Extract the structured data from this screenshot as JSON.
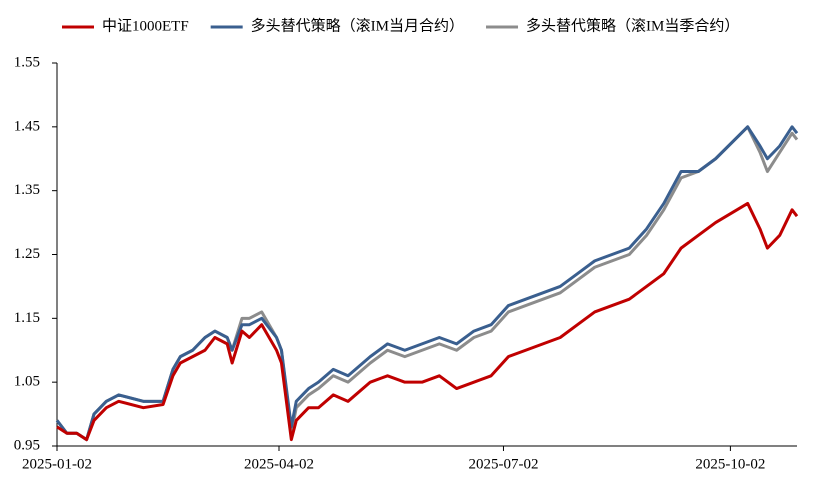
{
  "chart_data": {
    "type": "line",
    "x": [
      "2025-01-02",
      "2025-01-06",
      "2025-01-10",
      "2025-01-14",
      "2025-01-17",
      "2025-01-22",
      "2025-01-27",
      "2025-02-06",
      "2025-02-14",
      "2025-02-18",
      "2025-02-21",
      "2025-02-26",
      "2025-03-03",
      "2025-03-07",
      "2025-03-12",
      "2025-03-14",
      "2025-03-18",
      "2025-03-21",
      "2025-03-26",
      "2025-04-01",
      "2025-04-03",
      "2025-04-07",
      "2025-04-09",
      "2025-04-14",
      "2025-04-18",
      "2025-04-24",
      "2025-04-30",
      "2025-05-09",
      "2025-05-16",
      "2025-05-23",
      "2025-05-30",
      "2025-06-06",
      "2025-06-13",
      "2025-06-20",
      "2025-06-27",
      "2025-07-04",
      "2025-07-11",
      "2025-07-18",
      "2025-07-25",
      "2025-08-01",
      "2025-08-08",
      "2025-08-15",
      "2025-08-22",
      "2025-08-29",
      "2025-09-05",
      "2025-09-12",
      "2025-09-19",
      "2025-09-26",
      "2025-10-09",
      "2025-10-14",
      "2025-10-17",
      "2025-10-22",
      "2025-10-27",
      "2025-10-29"
    ],
    "series": [
      {
        "name": "中证1000ETF",
        "color": "#c00000",
        "values": [
          0.98,
          0.97,
          0.97,
          0.96,
          0.99,
          1.01,
          1.02,
          1.01,
          1.015,
          1.06,
          1.08,
          1.09,
          1.1,
          1.12,
          1.11,
          1.08,
          1.13,
          1.12,
          1.14,
          1.1,
          1.08,
          0.96,
          0.99,
          1.01,
          1.01,
          1.03,
          1.02,
          1.05,
          1.06,
          1.05,
          1.05,
          1.06,
          1.04,
          1.05,
          1.06,
          1.09,
          1.1,
          1.11,
          1.12,
          1.14,
          1.16,
          1.17,
          1.18,
          1.2,
          1.22,
          1.26,
          1.28,
          1.3,
          1.33,
          1.29,
          1.26,
          1.28,
          1.32,
          1.31
        ]
      },
      {
        "name": "多头替代策略（滚IM当月合约）",
        "color": "#3a5f8f",
        "values": [
          0.99,
          0.97,
          0.97,
          0.96,
          1.0,
          1.02,
          1.03,
          1.02,
          1.02,
          1.07,
          1.09,
          1.1,
          1.12,
          1.13,
          1.12,
          1.1,
          1.14,
          1.14,
          1.15,
          1.12,
          1.1,
          0.98,
          1.02,
          1.04,
          1.05,
          1.07,
          1.06,
          1.09,
          1.11,
          1.1,
          1.11,
          1.12,
          1.11,
          1.13,
          1.14,
          1.17,
          1.18,
          1.19,
          1.2,
          1.22,
          1.24,
          1.25,
          1.26,
          1.29,
          1.33,
          1.38,
          1.38,
          1.4,
          1.45,
          1.42,
          1.4,
          1.42,
          1.45,
          1.44
        ]
      },
      {
        "name": "多头替代策略（滚IM当季合约）",
        "color": "#8c8c8c",
        "values": [
          0.99,
          0.97,
          0.97,
          0.96,
          1.0,
          1.02,
          1.03,
          1.02,
          1.02,
          1.07,
          1.09,
          1.1,
          1.12,
          1.13,
          1.12,
          1.1,
          1.15,
          1.15,
          1.16,
          1.12,
          1.1,
          0.97,
          1.01,
          1.03,
          1.04,
          1.06,
          1.05,
          1.08,
          1.1,
          1.09,
          1.1,
          1.11,
          1.1,
          1.12,
          1.13,
          1.16,
          1.17,
          1.18,
          1.19,
          1.21,
          1.23,
          1.24,
          1.25,
          1.28,
          1.32,
          1.37,
          1.38,
          1.4,
          1.45,
          1.41,
          1.38,
          1.41,
          1.44,
          1.43
        ]
      }
    ],
    "xlim": [
      "2025-01-02",
      "2025-10-29"
    ],
    "xticks": [
      "2025-01-02",
      "2025-04-02",
      "2025-07-02",
      "2025-10-02"
    ],
    "ylim": [
      0.95,
      1.55
    ],
    "yticks": [
      0.95,
      1.05,
      1.15,
      1.25,
      1.35,
      1.45,
      1.55
    ],
    "legend": "top"
  }
}
